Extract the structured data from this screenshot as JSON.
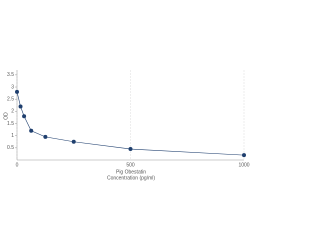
{
  "chart_data": {
    "type": "line",
    "xlabel_lines": [
      "Pig Obestatin",
      "Concentration (pg/ml)"
    ],
    "ylabel": "OD",
    "x": [
      0,
      15.6,
      31.25,
      62.5,
      125,
      250,
      500,
      1000
    ],
    "series": [
      {
        "color": "#1f3f6e",
        "values": [
          2.8,
          2.2,
          1.8,
          1.2,
          0.95,
          0.75,
          0.45,
          0.2
        ]
      }
    ],
    "xlim": [
      0,
      1000
    ],
    "xticks": [
      0,
      500,
      1000
    ],
    "ylim": [
      0,
      3.7
    ],
    "yticks": [
      0.5,
      1,
      1.5,
      2,
      2.5,
      3,
      3.5
    ],
    "grid": true
  }
}
